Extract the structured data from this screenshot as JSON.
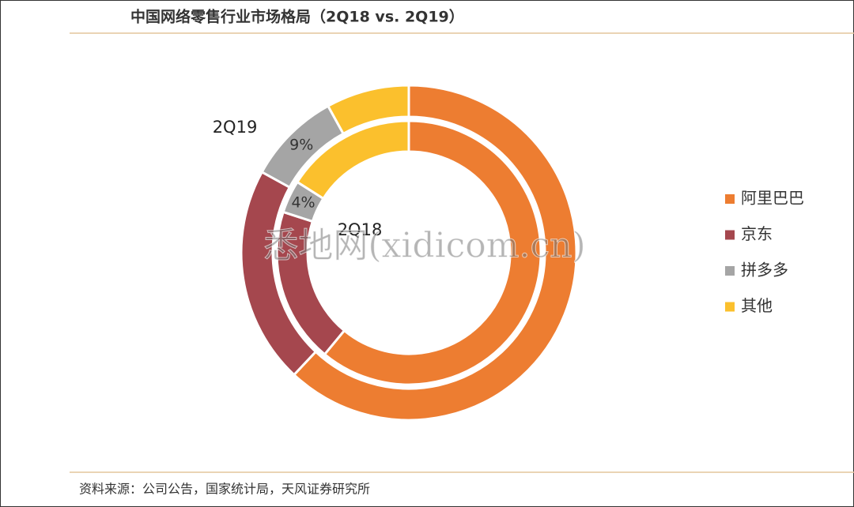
{
  "chart_data": {
    "type": "donut",
    "title": "中国网络零售行业市场格局（2Q18 vs. 2Q19）",
    "categories": [
      "阿里巴巴",
      "京东",
      "拼多多",
      "其他"
    ],
    "colors": [
      "#ed7d31",
      "#a5474e",
      "#a5a5a5",
      "#fbc02d"
    ],
    "series": [
      {
        "name": "2Q19",
        "values": [
          62,
          21,
          9,
          8
        ],
        "value_labels": [
          null,
          null,
          "9%",
          null
        ]
      },
      {
        "name": "2Q18",
        "values": [
          61,
          19,
          4,
          16
        ],
        "value_labels": [
          null,
          null,
          "4%",
          null
        ]
      }
    ],
    "legend": "right",
    "source": "资料来源：公司公告，国家统计局，天风证券研究所",
    "watermark": "悉地网(xidicom.cn)"
  }
}
